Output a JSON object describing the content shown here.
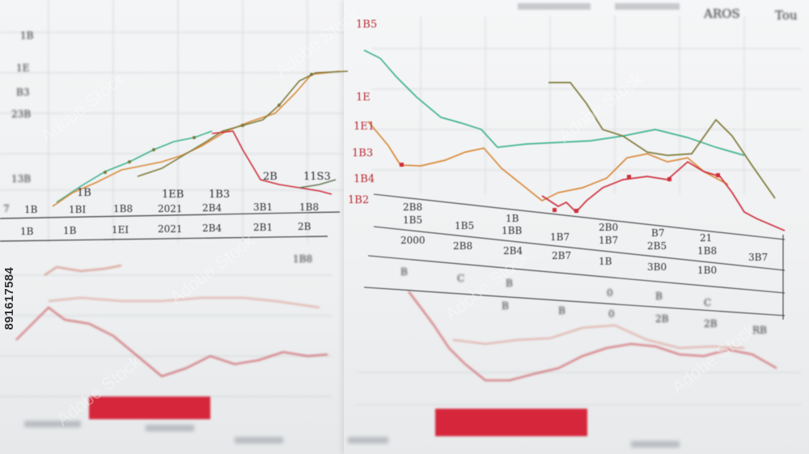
{
  "stock_id": "891617584",
  "watermark_text": "Adobe Stock",
  "colors": {
    "green": "#3fb38f",
    "orange": "#d98a3a",
    "red": "#cf2f3d",
    "olive": "#7f7a3a",
    "pink": "#d98a86",
    "bar_red": "#d5263b"
  },
  "left_chart": {
    "y_labels": [
      "1B",
      "1E",
      "B3",
      "23B",
      "13B",
      "7"
    ],
    "col_labels": [
      "1B",
      "1EB",
      "1B3",
      "2B",
      "11S3"
    ],
    "row1": [
      "1B",
      "1BI",
      "1B8",
      "2021",
      "2B4",
      "3B1",
      "1B8"
    ],
    "row2": [
      "1B",
      "1B",
      "1EI",
      "2021",
      "2B4",
      "2B1",
      "2B"
    ],
    "note": "1B8"
  },
  "right_chart": {
    "header": [
      "AROS",
      "Tou"
    ],
    "y_labels": [
      "1B5",
      "1E",
      "1E1",
      "1B3",
      "1B4",
      "1B2"
    ],
    "top_row": [
      "2B8",
      "1B",
      "2B0",
      "B7",
      "21"
    ],
    "row1": [
      "1B5",
      "1B5",
      "1BB",
      "1B7",
      "1B7",
      "2B5",
      "1B8"
    ],
    "row2": [
      "2000",
      "2B8",
      "2B4",
      "2B7",
      "1B",
      "3B0",
      "1B0",
      "3B7"
    ],
    "row3": [
      "B",
      "C",
      "B",
      "0",
      "B",
      "C"
    ],
    "row4": [
      "B",
      "B",
      "0",
      "2B",
      "2B",
      "RB"
    ]
  }
}
